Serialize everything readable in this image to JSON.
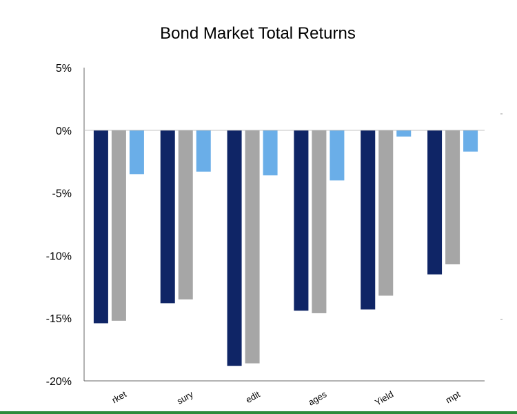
{
  "chart_data": {
    "type": "bar",
    "title": "Bond Market Total Returns",
    "xlabel": "",
    "ylabel": "",
    "ylim": [
      -20,
      5
    ],
    "yticks": [
      "5%",
      "0%",
      "-5%",
      "-10%",
      "-15%",
      "-20%"
    ],
    "ytick_values": [
      5,
      0,
      -5,
      -10,
      -15,
      -20
    ],
    "categories": [
      "rket",
      "sury",
      "edit",
      "ages",
      "Yield",
      "mpt"
    ],
    "grid": false,
    "legend": "none",
    "series": [
      {
        "color": "#0f2566",
        "values": [
          -15.4,
          -13.8,
          -18.8,
          -14.4,
          -14.3,
          -11.5
        ]
      },
      {
        "color": "#a6a6a6",
        "values": [
          -15.2,
          -13.5,
          -18.6,
          -14.6,
          -13.2,
          -10.7
        ]
      },
      {
        "color": "#6aaee8",
        "values": [
          -3.5,
          -3.3,
          -3.6,
          -4.0,
          -0.5,
          -1.7
        ]
      }
    ]
  }
}
